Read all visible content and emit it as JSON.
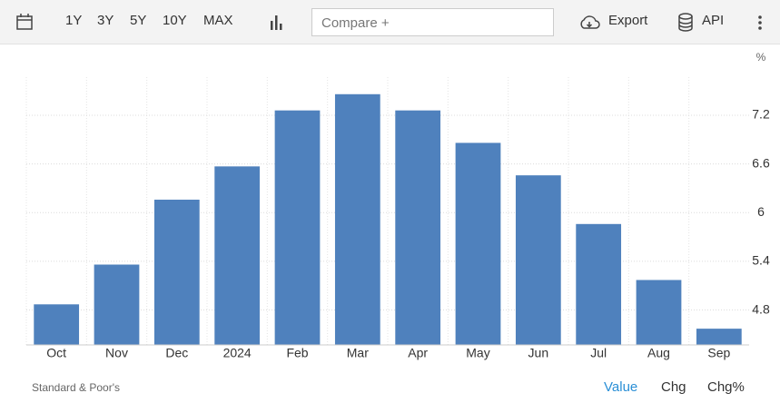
{
  "toolbar": {
    "ranges": [
      "1Y",
      "3Y",
      "5Y",
      "10Y",
      "MAX"
    ],
    "compare_placeholder": "Compare +",
    "export": "Export",
    "api": "API"
  },
  "chart_data": {
    "type": "bar",
    "y_unit": "%",
    "categories": [
      "Oct",
      "Nov",
      "Dec",
      "2024",
      "Feb",
      "Mar",
      "Apr",
      "May",
      "Jun",
      "Jul",
      "Aug",
      "Sep"
    ],
    "values": [
      4.87,
      5.36,
      6.16,
      6.57,
      7.26,
      7.46,
      7.26,
      6.86,
      6.46,
      5.86,
      5.17,
      4.57
    ],
    "color": "#4f81bd",
    "ylim": [
      4.37,
      7.67
    ],
    "yticks": [
      4.8,
      5.4,
      6.0,
      6.6,
      7.2
    ],
    "grid": true
  },
  "footer": {
    "source": "Standard & Poor's",
    "modes": [
      "Value",
      "Chg",
      "Chg%"
    ]
  }
}
